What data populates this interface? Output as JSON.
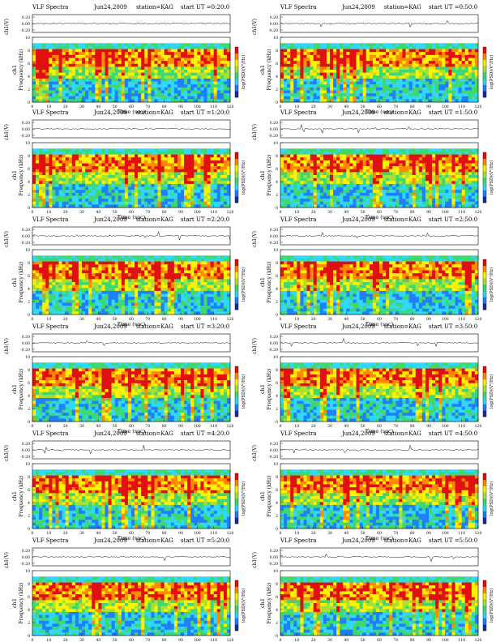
{
  "chart_data": [
    {
      "type": "heatmap",
      "title": "VLF Spectra",
      "date": "Jun24,2009",
      "station": "station=KAG",
      "start": "start UT =0:20:0",
      "channel_label": "ch1",
      "ts_label": "ch1(V)",
      "ts_ticks": [
        "0.20",
        "0.00",
        "-0.20"
      ],
      "xlabel": "Time (sec)",
      "ylabel": "Frequency (kHz)",
      "colorbar_label": "log(PSD)(V²/Hz)",
      "x_ticks": [
        "0",
        "10",
        "20",
        "30",
        "40",
        "50",
        "60",
        "70",
        "80",
        "90",
        "100",
        "110",
        "120"
      ],
      "y_ticks": [
        "0",
        "2",
        "4",
        "6",
        "8",
        "10"
      ],
      "xlim": [
        0,
        120
      ],
      "ylim": [
        0,
        10
      ]
    },
    {
      "type": "heatmap",
      "title": "VLF Spectra",
      "date": "Jun24,2009",
      "station": "station=KAG",
      "start": "start UT =0:50:0",
      "channel_label": "ch1",
      "ts_label": "ch1(V)",
      "ts_ticks": [
        "0.20",
        "0.00",
        "-0.20"
      ],
      "xlabel": "Time (sec)",
      "ylabel": "Frequency (kHz)",
      "colorbar_label": "log(PSD)(V²/Hz)",
      "x_ticks": [
        "0",
        "10",
        "20",
        "30",
        "40",
        "50",
        "60",
        "70",
        "80",
        "90",
        "100",
        "110",
        "120"
      ],
      "y_ticks": [
        "0",
        "2",
        "4",
        "6",
        "8",
        "10"
      ],
      "xlim": [
        0,
        120
      ],
      "ylim": [
        0,
        10
      ]
    },
    {
      "type": "heatmap",
      "title": "VLF Spectra",
      "date": "Jun24,2009",
      "station": "station=KAG",
      "start": "start UT =1:20:0",
      "channel_label": "ch1",
      "ts_label": "ch1(V)",
      "ts_ticks": [
        "0.20",
        "0.00",
        "-0.20"
      ],
      "xlabel": "Time (sec)",
      "ylabel": "Frequency (kHz)",
      "colorbar_label": "log(PSD)(V²/Hz)",
      "x_ticks": [
        "0",
        "10",
        "20",
        "30",
        "40",
        "50",
        "60",
        "70",
        "80",
        "90",
        "100",
        "110",
        "120"
      ],
      "y_ticks": [
        "0",
        "2",
        "4",
        "6",
        "8",
        "10"
      ],
      "xlim": [
        0,
        120
      ],
      "ylim": [
        0,
        10
      ]
    },
    {
      "type": "heatmap",
      "title": "VLF Spectra",
      "date": "Jun24,2009",
      "station": "station=KAG",
      "start": "start UT =1:50:0",
      "channel_label": "ch1",
      "ts_label": "ch1(V)",
      "ts_ticks": [
        "0.20",
        "0.00",
        "-0.20"
      ],
      "xlabel": "Time (sec)",
      "ylabel": "Frequency (kHz)",
      "colorbar_label": "log(PSD)(V²/Hz)",
      "x_ticks": [
        "0",
        "10",
        "20",
        "30",
        "40",
        "50",
        "60",
        "70",
        "80",
        "90",
        "100",
        "110",
        "120"
      ],
      "y_ticks": [
        "0",
        "2",
        "4",
        "6",
        "8",
        "10"
      ],
      "xlim": [
        0,
        120
      ],
      "ylim": [
        0,
        10
      ]
    },
    {
      "type": "heatmap",
      "title": "VLF Spectra",
      "date": "Jun24,2009",
      "station": "station=KAG",
      "start": "start UT =2:20:0",
      "channel_label": "ch1",
      "ts_label": "ch1(V)",
      "ts_ticks": [
        "0.20",
        "0.00",
        "-0.20"
      ],
      "xlabel": "Time (sec)",
      "ylabel": "Frequency (kHz)",
      "colorbar_label": "log(PSD)(V²/Hz)",
      "x_ticks": [
        "0",
        "10",
        "20",
        "30",
        "40",
        "50",
        "60",
        "70",
        "80",
        "90",
        "100",
        "110",
        "120"
      ],
      "y_ticks": [
        "0",
        "2",
        "4",
        "6",
        "8",
        "10"
      ],
      "xlim": [
        0,
        120
      ],
      "ylim": [
        0,
        10
      ]
    },
    {
      "type": "heatmap",
      "title": "VLF Spectra",
      "date": "Jun24,2009",
      "station": "station=KAG",
      "start": "start UT =2:50:0",
      "channel_label": "ch1",
      "ts_label": "ch1(V)",
      "ts_ticks": [
        "0.20",
        "0.00",
        "-0.20"
      ],
      "xlabel": "Time (sec)",
      "ylabel": "Frequency (kHz)",
      "colorbar_label": "log(PSD)(V²/Hz)",
      "x_ticks": [
        "0",
        "10",
        "20",
        "30",
        "40",
        "50",
        "60",
        "70",
        "80",
        "90",
        "100",
        "110",
        "120"
      ],
      "y_ticks": [
        "0",
        "2",
        "4",
        "6",
        "8",
        "10"
      ],
      "xlim": [
        0,
        120
      ],
      "ylim": [
        0,
        10
      ]
    },
    {
      "type": "heatmap",
      "title": "VLF Spectra",
      "date": "Jun24,2009",
      "station": "station=KAG",
      "start": "start UT =3:20:0",
      "channel_label": "ch1",
      "ts_label": "ch1(V)",
      "ts_ticks": [
        "0.20",
        "0.00",
        "-0.20"
      ],
      "xlabel": "Time (sec)",
      "ylabel": "Frequency (kHz)",
      "colorbar_label": "log(PSD)(V²/Hz)",
      "x_ticks": [
        "0",
        "10",
        "20",
        "30",
        "40",
        "50",
        "60",
        "70",
        "80",
        "90",
        "100",
        "110",
        "120"
      ],
      "y_ticks": [
        "0",
        "2",
        "4",
        "6",
        "8",
        "10"
      ],
      "xlim": [
        0,
        120
      ],
      "ylim": [
        0,
        10
      ]
    },
    {
      "type": "heatmap",
      "title": "VLF Spectra",
      "date": "Jun24,2009",
      "station": "station=KAG",
      "start": "start UT =3:50:0",
      "channel_label": "ch1",
      "ts_label": "ch1(V)",
      "ts_ticks": [
        "0.20",
        "0.00",
        "-0.20"
      ],
      "xlabel": "Time (sec)",
      "ylabel": "Frequency (kHz)",
      "colorbar_label": "log(PSD)(V²/Hz)",
      "x_ticks": [
        "0",
        "10",
        "20",
        "30",
        "40",
        "50",
        "60",
        "70",
        "80",
        "90",
        "100",
        "110",
        "120"
      ],
      "y_ticks": [
        "0",
        "2",
        "4",
        "6",
        "8",
        "10"
      ],
      "xlim": [
        0,
        120
      ],
      "ylim": [
        0,
        10
      ]
    },
    {
      "type": "heatmap",
      "title": "VLF Spectra",
      "date": "Jun24,2009",
      "station": "station=KAG",
      "start": "start UT =4:20:0",
      "channel_label": "ch1",
      "ts_label": "ch1(V)",
      "ts_ticks": [
        "0.20",
        "0.00",
        "-0.20"
      ],
      "xlabel": "Time (sec)",
      "ylabel": "Frequency (kHz)",
      "colorbar_label": "log(PSD)(V²/Hz)",
      "x_ticks": [
        "0",
        "10",
        "20",
        "30",
        "40",
        "50",
        "60",
        "70",
        "80",
        "90",
        "100",
        "110",
        "120"
      ],
      "y_ticks": [
        "0",
        "2",
        "4",
        "6",
        "8",
        "10"
      ],
      "xlim": [
        0,
        120
      ],
      "ylim": [
        0,
        10
      ]
    },
    {
      "type": "heatmap",
      "title": "VLF Spectra",
      "date": "Jun24,2009",
      "station": "station=KAG",
      "start": "start UT =4:50:0",
      "channel_label": "ch1",
      "ts_label": "ch1(V)",
      "ts_ticks": [
        "0.20",
        "0.00",
        "-0.20"
      ],
      "xlabel": "Time (sec)",
      "ylabel": "Frequency (kHz)",
      "colorbar_label": "log(PSD)(V²/Hz)",
      "x_ticks": [
        "0",
        "10",
        "20",
        "30",
        "40",
        "50",
        "60",
        "70",
        "80",
        "90",
        "100",
        "110",
        "120"
      ],
      "y_ticks": [
        "0",
        "2",
        "4",
        "6",
        "8",
        "10"
      ],
      "xlim": [
        0,
        120
      ],
      "ylim": [
        0,
        10
      ]
    },
    {
      "type": "heatmap",
      "title": "VLF Spectra",
      "date": "Jun24,2009",
      "station": "station=KAG",
      "start": "start UT =5:20:0",
      "channel_label": "ch1",
      "ts_label": "ch1(V)",
      "ts_ticks": [
        "0.20",
        "0.00",
        "-0.20"
      ],
      "xlabel": "Time (sec)",
      "ylabel": "Frequency (kHz)",
      "colorbar_label": "log(PSD)(V²/Hz)",
      "x_ticks": [
        "0",
        "10",
        "20",
        "30",
        "40",
        "50",
        "60",
        "70",
        "80",
        "90",
        "100",
        "110",
        "120"
      ],
      "y_ticks": [
        "0",
        "2",
        "4",
        "6",
        "8",
        "10"
      ],
      "xlim": [
        0,
        120
      ],
      "ylim": [
        0,
        10
      ]
    },
    {
      "type": "heatmap",
      "title": "VLF Spectra",
      "date": "Jun24,2009",
      "station": "station=KAG",
      "start": "start UT =5:50:0",
      "channel_label": "ch1",
      "ts_label": "ch1(V)",
      "ts_ticks": [
        "0.20",
        "0.00",
        "-0.20"
      ],
      "xlabel": "Time (sec)",
      "ylabel": "Frequency (kHz)",
      "colorbar_label": "log(PSD)(V²/Hz)",
      "x_ticks": [
        "0",
        "10",
        "20",
        "30",
        "40",
        "50",
        "60",
        "70",
        "80",
        "90",
        "100",
        "110",
        "120"
      ],
      "y_ticks": [
        "0",
        "2",
        "4",
        "6",
        "8",
        "10"
      ],
      "xlim": [
        0,
        120
      ],
      "ylim": [
        0,
        10
      ]
    }
  ],
  "colors": {
    "colormap": [
      "#ffffff",
      "#1e2a9e",
      "#1f7fff",
      "#2fd8ff",
      "#3fd870",
      "#a8e033",
      "#fff200",
      "#ff8a00",
      "#e01010"
    ],
    "background": "#ffffff",
    "axis": "#000000"
  }
}
